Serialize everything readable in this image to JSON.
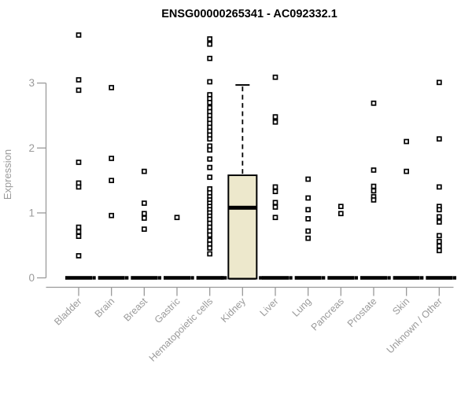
{
  "title": "ENSG00000265341 - AC092332.1",
  "chart_data": {
    "type": "scatter",
    "subtype": "strip-plot-with-boxplot",
    "title": "ENSG00000265341 - AC092332.1",
    "xlabel": "",
    "ylabel": "Expression",
    "yticks": [
      0,
      1,
      2,
      3
    ],
    "ylim": [
      0,
      3.85
    ],
    "grid": "off",
    "legend": "none",
    "categories": [
      "Bladder",
      "Brain",
      "Breast",
      "Gastric",
      "Hematopoietic cells",
      "Kidney",
      "Liver",
      "Lung",
      "Pancreas",
      "Prostate",
      "Skin",
      "Unknown / Other"
    ],
    "zero_dash_note": "every category has a thick black dash at y=0",
    "points": {
      "Bladder": [
        3.74,
        3.05,
        2.89,
        1.78,
        1.46,
        1.4,
        0.78,
        0.71,
        0.64,
        0.34,
        0.0
      ],
      "Brain": [
        2.93,
        1.84,
        1.5,
        0.96,
        0.0
      ],
      "Breast": [
        1.64,
        1.15,
        0.99,
        0.92,
        0.75,
        0.0
      ],
      "Gastric": [
        0.93,
        0.0
      ],
      "Hematopoietic cells": [
        3.68,
        3.6,
        3.38,
        3.02,
        2.82,
        2.76,
        2.7,
        2.62,
        2.56,
        2.5,
        2.44,
        2.38,
        2.32,
        2.26,
        2.2,
        2.14,
        2.03,
        1.97,
        1.83,
        1.7,
        1.55,
        1.37,
        1.31,
        1.25,
        1.2,
        1.15,
        1.1,
        1.05,
        1.0,
        0.95,
        0.9,
        0.84,
        0.78,
        0.72,
        0.66,
        0.58,
        0.52,
        0.46,
        0.37,
        0.0
      ],
      "Kidney": [
        0.0,
        0.0
      ],
      "Liver": [
        3.09,
        2.48,
        2.4,
        1.4,
        1.33,
        1.16,
        1.09,
        0.93,
        0.0
      ],
      "Lung": [
        1.52,
        1.23,
        1.05,
        0.91,
        0.72,
        0.61,
        0.0
      ],
      "Pancreas": [
        1.1,
        0.99,
        0.0
      ],
      "Prostate": [
        2.69,
        1.66,
        1.41,
        1.34,
        1.25,
        1.2,
        0.0
      ],
      "Skin": [
        2.1,
        1.64,
        0.0
      ],
      "Unknown / Other": [
        3.01,
        2.14,
        1.4,
        1.1,
        1.05,
        0.94,
        0.86,
        0.65,
        0.56,
        0.49,
        0.42,
        0.0
      ]
    },
    "boxplot": {
      "category": "Kidney",
      "q1": 0.0,
      "median": 1.08,
      "q3": 1.58,
      "whisker_low": 0.0,
      "whisker_high": 2.97
    },
    "colors": {
      "title": "#000000",
      "axis": "#9A9A9A",
      "tick_labels": "#9A9A9A",
      "points": "#000000",
      "zero_dash": "#000000",
      "box_fill": "#EDE8CC",
      "box_border": "#000000",
      "median": "#000000",
      "background": "#FFFFFF"
    }
  }
}
